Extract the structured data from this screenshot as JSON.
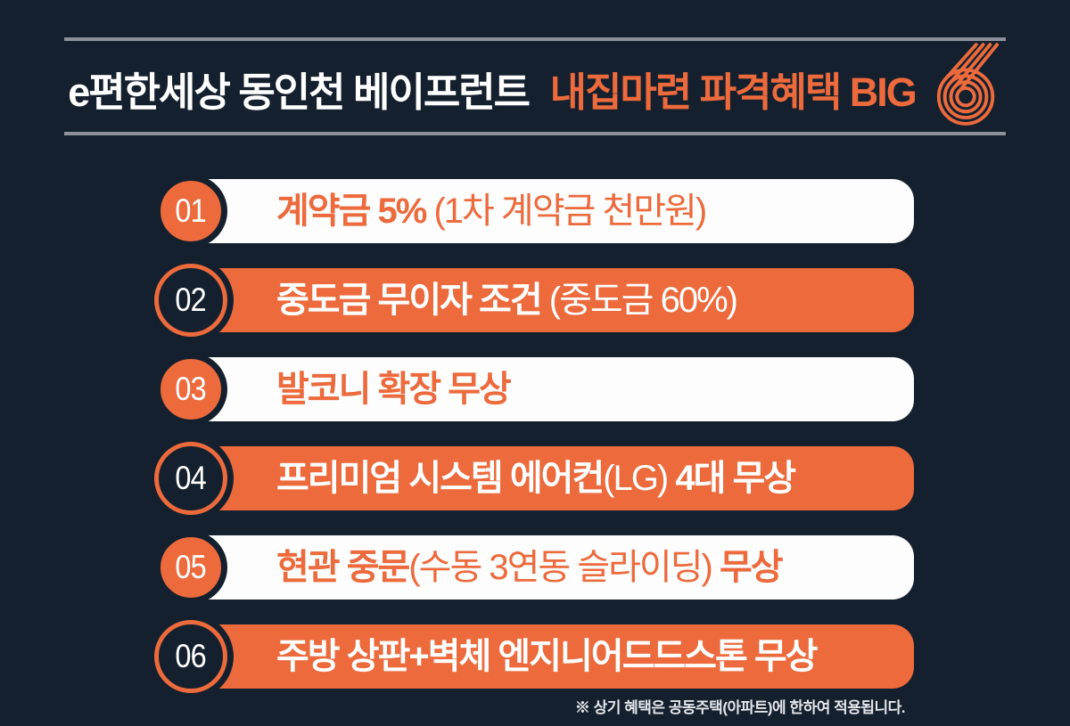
{
  "page": {
    "bg_color": "#14202E",
    "accent_color": "#EC6A3C",
    "rule_color": "#8C919B"
  },
  "header": {
    "title_white": "e편한세상 동인천 베이프런트 ",
    "title_orange": "내집마련 파격혜택 BIG",
    "logo_six": "6"
  },
  "rows": [
    {
      "num": "01",
      "style": "light",
      "segments": [
        {
          "t": "계약금 5% ",
          "b": true
        },
        {
          "t": "(1차 계약금 천만원)",
          "b": false
        }
      ]
    },
    {
      "num": "02",
      "style": "filled",
      "segments": [
        {
          "t": "중도금 무이자 조건 ",
          "b": true
        },
        {
          "t": "(중도금 60%)",
          "b": false
        }
      ]
    },
    {
      "num": "03",
      "style": "light",
      "segments": [
        {
          "t": "발코니 확장 무상",
          "b": true
        }
      ]
    },
    {
      "num": "04",
      "style": "filled",
      "segments": [
        {
          "t": "프리미엄 시스템 에어컨",
          "b": true
        },
        {
          "t": "(LG)",
          "b": false
        },
        {
          "t": " 4대 무상",
          "b": true
        }
      ]
    },
    {
      "num": "05",
      "style": "light",
      "segments": [
        {
          "t": "현관 중문",
          "b": true
        },
        {
          "t": "(수동 3연동 슬라이딩)",
          "b": false
        },
        {
          "t": " 무상",
          "b": true
        }
      ]
    },
    {
      "num": "06",
      "style": "filled",
      "segments": [
        {
          "t": "주방 상판+벽체 엔지니어드드스톤 무상",
          "b": true
        }
      ]
    }
  ],
  "footnote": "※ 상기 혜택은 공동주택(아파트)에 한하여 적용됩니다."
}
